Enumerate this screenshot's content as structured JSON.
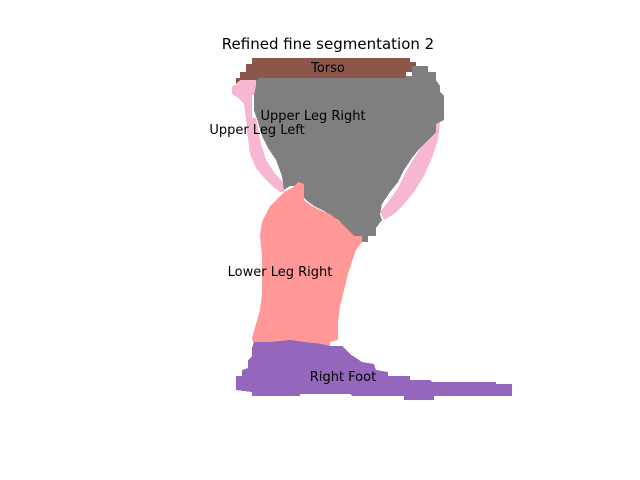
{
  "figure": {
    "title": "Refined fine segmentation 2"
  },
  "segments": {
    "torso": {
      "label": "Torso",
      "color": "#8c564b"
    },
    "upper_leg_right": {
      "label": "Upper Leg Right",
      "color": "#7f7f7f"
    },
    "upper_leg_left": {
      "label": "Upper Leg Left",
      "color": "#f7b6d2"
    },
    "lower_leg_right": {
      "label": "Lower Leg Right",
      "color": "#ff9896"
    },
    "right_foot": {
      "label": "Right Foot",
      "color": "#9467bd"
    }
  }
}
